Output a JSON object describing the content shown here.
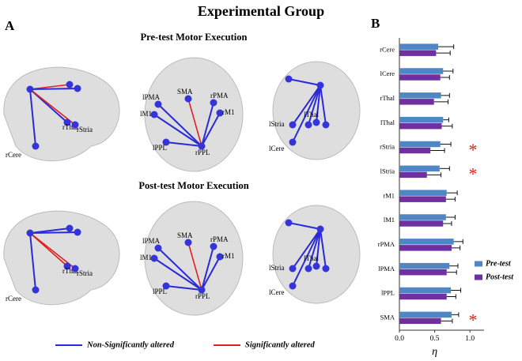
{
  "title": "Experimental Group",
  "panel_a": {
    "label": "A",
    "sections": [
      {
        "title": "Pre-test Motor Execution",
        "views": [
          [
            "rThal",
            "rStria",
            "rCere"
          ],
          [
            "SMA",
            "lPMA",
            "lM1",
            "rPMA",
            "rM1",
            "lPPL",
            "rPPL"
          ],
          [
            "lThal",
            "lStria",
            "lCere"
          ]
        ]
      },
      {
        "title": "Post-test Motor Execution",
        "views": [
          [
            "rThal",
            "rStria",
            "rCere"
          ],
          [
            "SMA",
            "lPMA",
            "lM1",
            "rPMA",
            "rM1",
            "lPPL",
            "rPPL"
          ],
          [
            "lThal",
            "lStria",
            "lCere"
          ]
        ]
      }
    ],
    "legend": [
      {
        "label": "Non-Significantly altered",
        "color": "#2a2ad6"
      },
      {
        "label": "Significantly altered",
        "color": "#e02020"
      }
    ]
  },
  "chart_data": {
    "type": "hbar",
    "label": "B",
    "categories": [
      "rCere",
      "lCere",
      "rThal",
      "lThal",
      "rStria",
      "lStria",
      "rM1",
      "lM1",
      "rPMA",
      "lPMA",
      "lPPL",
      "SMA"
    ],
    "series": [
      {
        "name": "Pre-test",
        "color": "#4f86c6",
        "values": [
          0.55,
          0.62,
          0.59,
          0.62,
          0.58,
          0.57,
          0.67,
          0.66,
          0.77,
          0.71,
          0.73,
          0.74
        ],
        "errors": [
          0.22,
          0.14,
          0.12,
          0.08,
          0.15,
          0.14,
          0.15,
          0.13,
          0.13,
          0.12,
          0.14,
          0.1
        ]
      },
      {
        "name": "Post-test",
        "color": "#7030a0",
        "values": [
          0.52,
          0.58,
          0.49,
          0.6,
          0.44,
          0.39,
          0.66,
          0.62,
          0.74,
          0.67,
          0.67,
          0.59
        ],
        "errors": [
          0.2,
          0.13,
          0.2,
          0.15,
          0.2,
          0.2,
          0.13,
          0.12,
          0.12,
          0.14,
          0.13,
          0.16
        ]
      }
    ],
    "xlabel": "η",
    "xlim": [
      0,
      1.2
    ],
    "xticks": [
      {
        "value": 0,
        "label": "0.0"
      },
      {
        "value": 0.5,
        "label": "0.5"
      },
      {
        "value": 1,
        "label": "1.0"
      }
    ],
    "annotations": [
      {
        "text": "*",
        "category": "rStria"
      },
      {
        "text": "*",
        "category": "lStria"
      },
      {
        "text": "*",
        "category": "SMA"
      }
    ],
    "legend": "lower right"
  }
}
